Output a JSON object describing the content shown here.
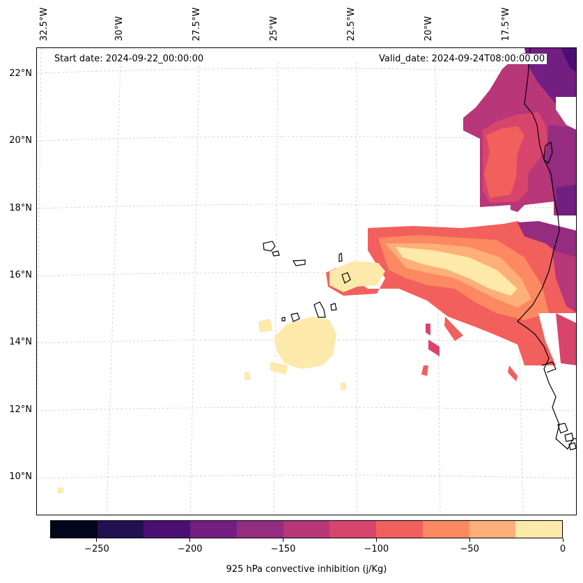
{
  "annotations": {
    "start_date": "Start date: 2024-09-22_00:00:00",
    "valid_date": "Valid_date: 2024-09-24T08:00:00.00"
  },
  "latitude_labels": [
    "22°N",
    "20°N",
    "18°N",
    "16°N",
    "14°N",
    "12°N",
    "10°N"
  ],
  "longitude_labels": [
    "32.5°W",
    "30°W",
    "27.5°W",
    "25°W",
    "22.5°W",
    "20°W",
    "17.5°W"
  ],
  "colorbar": {
    "label": "925 hPa convective inhibition (j/Kg)",
    "tick_labels": [
      "−250",
      "−200",
      "−150",
      "−100",
      "−50",
      "0"
    ],
    "tick_values": [
      -250,
      -200,
      -150,
      -100,
      -50,
      0
    ],
    "range": [
      -275,
      0
    ],
    "level_colors": [
      "#03051a",
      "#221150",
      "#4b0f74",
      "#721f81",
      "#942c80",
      "#b73779",
      "#d8456c",
      "#f1605d",
      "#fc8961",
      "#feb078",
      "#fde9a9"
    ]
  }
}
